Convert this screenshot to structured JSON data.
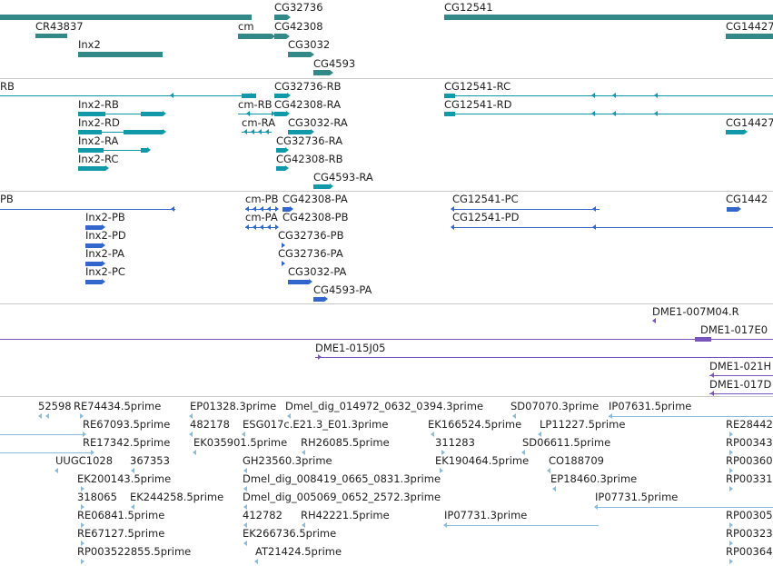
{
  "colors": {
    "gene": "#338888",
    "transcript": "#1199aa",
    "protein": "#3366cc",
    "clone": "#7755bb",
    "est": "#88bbdd"
  },
  "tracks": {
    "genes": {
      "labels": {
        "g0": "CR43837",
        "g1": "Inx2",
        "g2": "cm",
        "g3": "CG32736",
        "g4": "CG42308",
        "g5": "CG3032",
        "g6": "CG4593",
        "g7": "CG12541",
        "g8": "CG14427"
      }
    },
    "transcripts": {
      "labels": {
        "t0": "RB",
        "t1": "Inx2-RB",
        "t2": "Inx2-RD",
        "t3": "Inx2-RA",
        "t4": "Inx2-RC",
        "t5": "cm-RB",
        "t6": "CG42308-RA",
        "t7": "cm-RA",
        "t8": "CG3032-RA",
        "t9": "CG32736-RB",
        "t10": "CG32736-RA",
        "t11": "CG42308-RB",
        "t12": "CG4593-RA",
        "t13": "CG12541-RC",
        "t14": "CG12541-RD",
        "t15": "CG14427"
      }
    },
    "proteins": {
      "labels": {
        "p0": "PB",
        "p1": "Inx2-PB",
        "p2": "Inx2-PD",
        "p3": "Inx2-PA",
        "p4": "Inx2-PC",
        "p5": "cm-PB",
        "p6": "CG42308-PA",
        "p7": "cm-PA",
        "p8": "CG42308-PB",
        "p9": "CG32736-PB",
        "p10": "CG32736-PA",
        "p11": "CG3032-PA",
        "p12": "CG4593-PA",
        "p13": "CG12541-PC",
        "p14": "CG12541-PD",
        "p15": "CG1442"
      }
    },
    "clones": {
      "labels": {
        "c0": "DME1-007M04.R",
        "c1": "DME1-017E0",
        "c2": "DME1-015J05",
        "c3": "DME1-021H",
        "c4": "DME1-017D"
      }
    },
    "ests": {
      "labels": {
        "e0": "52598",
        "e1": "RE74434.5prime",
        "e2": "EP01328.3prime",
        "e3": "Dmel_dig_014972_0632_0394.3prime",
        "e4": "SD07070.3prime",
        "e5": "IP07631.5prime",
        "e6": "RE67093.5prime",
        "e7": "482178",
        "e8": "ESG017c.E21.3_E01.3prime",
        "e9": "EK166524.5prime",
        "e10": "LP11227.5prime",
        "e11": "RE28442",
        "e12": "RE17342.5prime",
        "e13": "EK035901.5prime",
        "e14": "RH26085.5prime",
        "e15": "311283",
        "e16": "SD06611.5prime",
        "e17": "RP00343",
        "e18": "UUGC1028",
        "e19": "367353",
        "e20": "GH23560.3prime",
        "e21": "EK190464.5prime",
        "e22": "CO188709",
        "e23": "RP00360",
        "e24": "EK200143.5prime",
        "e25": "Dmel_dig_008419_0665_0831.3prime",
        "e26": "EP18460.3prime",
        "e27": "RP00331",
        "e28": "318065",
        "e29": "EK244258.5prime",
        "e30": "Dmel_dig_005069_0652_2572.3prime",
        "e31": "IP07731.5prime",
        "e32": "RE06841.5prime",
        "e33": "412782",
        "e34": "RH42221.5prime",
        "e35": "IP07731.3prime",
        "e36": "RP00305",
        "e37": "RE67127.5prime",
        "e38": "EK266736.5prime",
        "e39": "RP00323",
        "e40": "RP003522855.5prime",
        "e41": "AT21424.5prime",
        "e42": "RP00364"
      }
    }
  }
}
